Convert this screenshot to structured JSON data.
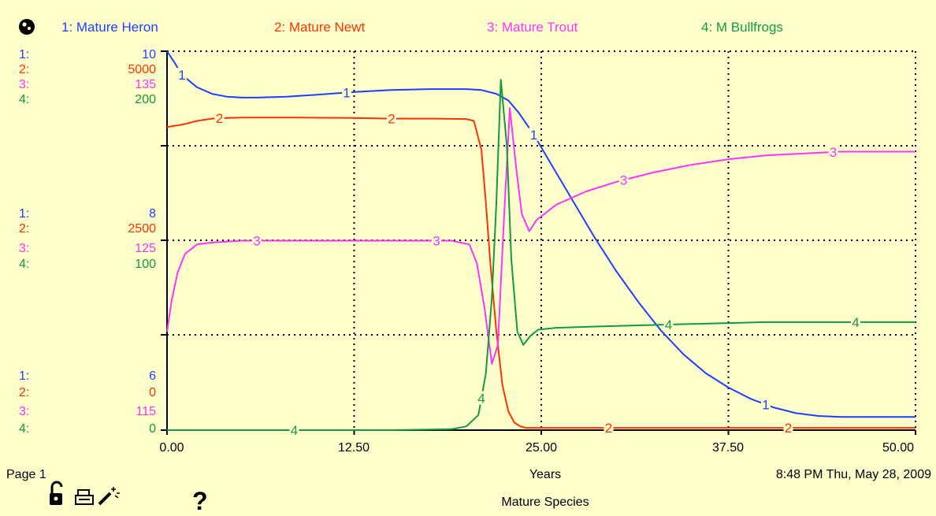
{
  "app": {
    "page_label": "Page 1",
    "time_stamp": "8:48 PM  Thu, May 28, 2009",
    "graph_title": "Mature Species",
    "help_symbol": "?",
    "icons": [
      "globe-icon",
      "lock-open-icon",
      "print-icon",
      "magic-wand-icon",
      "help-icon"
    ]
  },
  "chart_data": {
    "type": "line",
    "xlabel": "Years",
    "x_ticks": [
      "0.00",
      "12.50",
      "25.00",
      "37.50",
      "50.00"
    ],
    "xlim": [
      0,
      50
    ],
    "grid": true,
    "legend_position": "top",
    "scale_rows": [
      {
        "values": [
          "1:",
          "2:",
          "3:",
          "4:"
        ],
        "numbers": [
          "10",
          "5000",
          "135",
          "200"
        ]
      },
      {
        "values": [
          "1:",
          "2:",
          "3:",
          "4:"
        ],
        "numbers": [
          "8",
          "2500",
          "125",
          "100"
        ]
      },
      {
        "values": [
          "1:",
          "2:",
          "3:",
          "4:"
        ],
        "numbers": [
          "6",
          "0",
          "115",
          "0"
        ]
      }
    ],
    "series": [
      {
        "name": "1: Mature Heron",
        "marker": "1",
        "color": "#1f3fff",
        "ylim": [
          6,
          10
        ],
        "x": [
          0,
          0.5,
          1,
          2,
          3,
          4,
          5,
          6,
          8,
          10,
          12.5,
          15,
          17.5,
          20,
          21,
          22,
          22.8,
          23.5,
          24.5,
          25.5,
          27,
          28.5,
          30,
          31.5,
          33,
          34.5,
          36,
          37.5,
          39,
          40.5,
          42,
          43.5,
          45,
          47.5,
          50
        ],
        "values": [
          10,
          9.88,
          9.75,
          9.62,
          9.55,
          9.52,
          9.51,
          9.51,
          9.52,
          9.54,
          9.57,
          9.59,
          9.6,
          9.6,
          9.59,
          9.55,
          9.48,
          9.35,
          9.12,
          8.85,
          8.45,
          8.05,
          7.68,
          7.35,
          7.05,
          6.8,
          6.6,
          6.45,
          6.33,
          6.24,
          6.18,
          6.15,
          6.14,
          6.14,
          6.14
        ]
      },
      {
        "name": "2: Mature Newt",
        "marker": "2",
        "color": "#ff3300",
        "ylim": [
          0,
          5000
        ],
        "x": [
          0,
          1,
          2,
          3,
          4,
          5,
          8,
          12.5,
          15,
          18,
          20,
          20.5,
          21,
          21.3,
          21.6,
          22,
          22.4,
          22.8,
          23.2,
          23.6,
          24,
          25,
          30,
          37.5,
          44,
          50
        ],
        "values": [
          4000,
          4030,
          4080,
          4110,
          4120,
          4125,
          4125,
          4120,
          4110,
          4110,
          4105,
          4080,
          3700,
          3000,
          2200,
          1300,
          600,
          250,
          100,
          50,
          30,
          30,
          30,
          30,
          30,
          30
        ]
      },
      {
        "name": "3: Mature Trout",
        "marker": "3",
        "color": "#ff33ff",
        "ylim": [
          115,
          135
        ],
        "x": [
          0,
          0.3,
          0.7,
          1.2,
          2,
          3,
          5,
          10,
          15,
          19,
          20.2,
          20.7,
          21.2,
          21.7,
          22.1,
          22.5,
          22.9,
          23.3,
          23.7,
          24.2,
          24.7,
          26,
          28,
          30,
          32.5,
          35,
          37.5,
          40,
          42.5,
          45,
          50
        ],
        "values": [
          120.2,
          121.8,
          123.3,
          124.3,
          124.8,
          124.9,
          125,
          125,
          125,
          125,
          124.8,
          123.8,
          121.5,
          118.5,
          119.5,
          126,
          132,
          129,
          126.4,
          125.5,
          126.1,
          126.9,
          127.6,
          128.1,
          128.6,
          129,
          129.3,
          129.5,
          129.6,
          129.7,
          129.7
        ]
      },
      {
        "name": "4: M Bullfrogs",
        "marker": "4",
        "color": "#119944",
        "ylim": [
          0,
          200
        ],
        "x": [
          0,
          5,
          10,
          15,
          19,
          20,
          20.8,
          21.3,
          21.7,
          22,
          22.3,
          22.7,
          23,
          23.4,
          23.8,
          24.3,
          24.8,
          26,
          30,
          35,
          40,
          45,
          50
        ],
        "values": [
          0,
          0,
          0,
          0,
          0.5,
          2,
          8,
          30,
          70,
          120,
          185,
          150,
          90,
          52,
          45,
          50,
          53,
          54,
          55,
          56,
          57,
          57,
          57
        ]
      }
    ]
  }
}
